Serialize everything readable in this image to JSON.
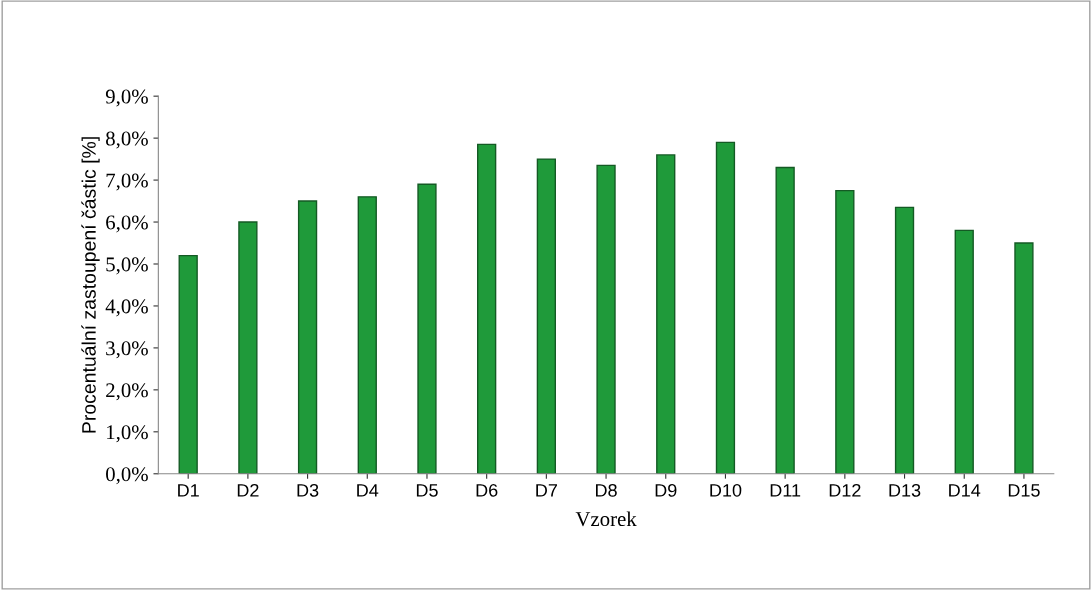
{
  "chart_data": {
    "type": "bar",
    "xlabel": "Vzorek",
    "ylabel": "Procentuální zastoupení částic [%]",
    "categories": [
      "D1",
      "D2",
      "D3",
      "D4",
      "D5",
      "D6",
      "D7",
      "D8",
      "D9",
      "D10",
      "D11",
      "D12",
      "D13",
      "D14",
      "D15"
    ],
    "values": [
      5.2,
      6.0,
      6.5,
      6.6,
      6.9,
      7.85,
      7.5,
      7.35,
      7.6,
      7.9,
      7.3,
      6.75,
      6.35,
      5.8,
      5.5
    ],
    "color": "#1f9a3a",
    "ylim": [
      0,
      9
    ],
    "yticks": [
      {
        "value": 0,
        "label": "0,0%"
      },
      {
        "value": 1,
        "label": "1,0%"
      },
      {
        "value": 2,
        "label": "2,0%"
      },
      {
        "value": 3,
        "label": "3,0%"
      },
      {
        "value": 4,
        "label": "4,0%"
      },
      {
        "value": 5,
        "label": "5,0%"
      },
      {
        "value": 6,
        "label": "6,0%"
      },
      {
        "value": 7,
        "label": "7,0%"
      },
      {
        "value": 8,
        "label": "8,0%"
      },
      {
        "value": 9,
        "label": "9,0%"
      }
    ],
    "grid": false,
    "legend": false
  }
}
